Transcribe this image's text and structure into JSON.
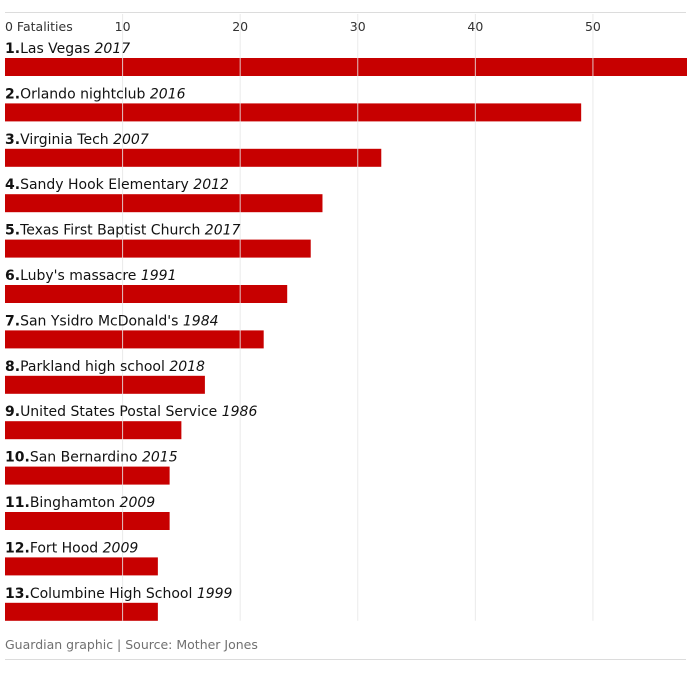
{
  "chart_data": {
    "type": "bar",
    "orientation": "horizontal",
    "axis_label": "Fatalities",
    "x_ticks": [
      0,
      10,
      20,
      30,
      40,
      50
    ],
    "xlim": [
      0,
      58
    ],
    "bar_color": "#c70000",
    "categories": [
      {
        "rank": "1.",
        "name": "Las Vegas",
        "year": "2017",
        "value": 58
      },
      {
        "rank": "2.",
        "name": "Orlando nightclub",
        "year": "2016",
        "value": 49
      },
      {
        "rank": "3.",
        "name": "Virginia Tech",
        "year": "2007",
        "value": 32
      },
      {
        "rank": "4.",
        "name": "Sandy Hook Elementary",
        "year": "2012",
        "value": 27
      },
      {
        "rank": "5.",
        "name": "Texas First Baptist Church",
        "year": "2017",
        "value": 26
      },
      {
        "rank": "6.",
        "name": "Luby's massacre",
        "year": "1991",
        "value": 24
      },
      {
        "rank": "7.",
        "name": "San Ysidro McDonald's",
        "year": "1984",
        "value": 22
      },
      {
        "rank": "8.",
        "name": "Parkland high school",
        "year": "2018",
        "value": 17
      },
      {
        "rank": "9.",
        "name": "United States Postal Service",
        "year": "1986",
        "value": 15
      },
      {
        "rank": "10.",
        "name": "San Bernardino",
        "year": "2015",
        "value": 14
      },
      {
        "rank": "11.",
        "name": "Binghamton",
        "year": "2009",
        "value": 14
      },
      {
        "rank": "12.",
        "name": "Fort Hood",
        "year": "2009",
        "value": 13
      },
      {
        "rank": "13.",
        "name": "Columbine High School",
        "year": "1999",
        "value": 13
      }
    ]
  },
  "footer": {
    "source": "Guardian graphic | Source: Mother Jones"
  }
}
